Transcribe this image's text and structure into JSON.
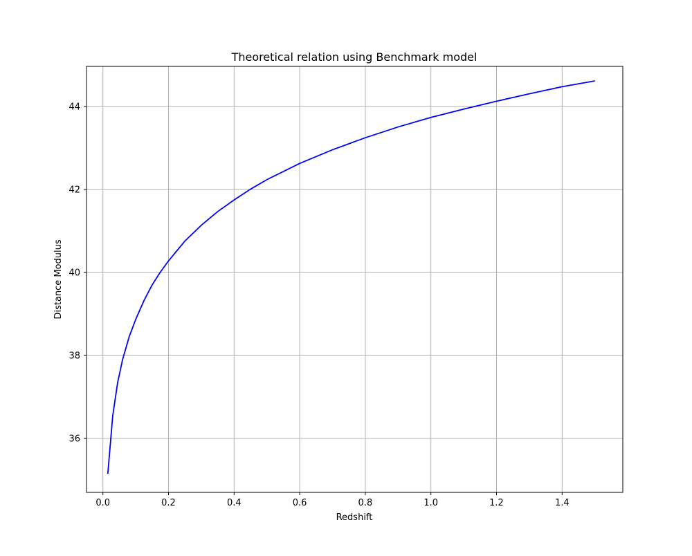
{
  "chart_data": {
    "type": "line",
    "title": "Theoretical relation using Benchmark model",
    "xlabel": "Redshift",
    "ylabel": "Distance Modulus",
    "xlim": [
      -0.05,
      1.585
    ],
    "ylim": [
      34.7,
      44.97
    ],
    "grid": true,
    "legend": "none",
    "x_ticks": [
      0.0,
      0.2,
      0.4,
      0.6,
      0.8,
      1.0,
      1.2,
      1.4
    ],
    "x_tick_labels": [
      "0.0",
      "0.2",
      "0.4",
      "0.6",
      "0.8",
      "1.0",
      "1.2",
      "1.4"
    ],
    "y_ticks": [
      36,
      38,
      40,
      42,
      44
    ],
    "y_tick_labels": [
      "36",
      "38",
      "40",
      "42",
      "44"
    ],
    "series": [
      {
        "color": "#0000ff",
        "x": [
          0.015,
          0.03,
          0.045,
          0.06,
          0.08,
          0.1,
          0.125,
          0.15,
          0.175,
          0.2,
          0.25,
          0.3,
          0.35,
          0.4,
          0.45,
          0.5,
          0.6,
          0.7,
          0.8,
          0.9,
          1.0,
          1.1,
          1.2,
          1.3,
          1.4,
          1.5
        ],
        "y": [
          35.15,
          36.55,
          37.35,
          37.9,
          38.45,
          38.87,
          39.32,
          39.7,
          40.01,
          40.28,
          40.76,
          41.14,
          41.47,
          41.75,
          42.01,
          42.24,
          42.63,
          42.96,
          43.25,
          43.51,
          43.74,
          43.94,
          44.13,
          44.31,
          44.48,
          44.62
        ]
      }
    ]
  }
}
